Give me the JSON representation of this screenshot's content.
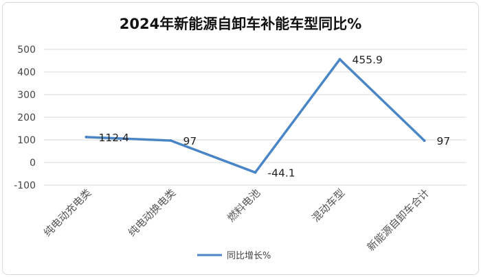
{
  "chart_data": {
    "type": "line",
    "title": "2024年新能源自卸车补能车型同比%",
    "categories": [
      "纯电动充电类",
      "纯电动换电类",
      "燃料电池",
      "混动车型",
      "新能源自卸车合计"
    ],
    "series": [
      {
        "name": "同比增长%",
        "values": [
          112.4,
          97,
          -44.1,
          455.9,
          97
        ],
        "color": "#4a86c5"
      }
    ],
    "data_labels": [
      "112.4",
      "97",
      "-44.1",
      "455.9",
      "97"
    ],
    "ylim": [
      -100,
      500
    ],
    "yticks": [
      -100,
      0,
      100,
      200,
      300,
      400,
      500
    ],
    "xlabel": "",
    "ylabel": "",
    "grid": true,
    "legend_position": "bottom"
  },
  "colors": {
    "line": "#4a86c5",
    "grid": "#d9d9d9",
    "text": "#444444"
  }
}
